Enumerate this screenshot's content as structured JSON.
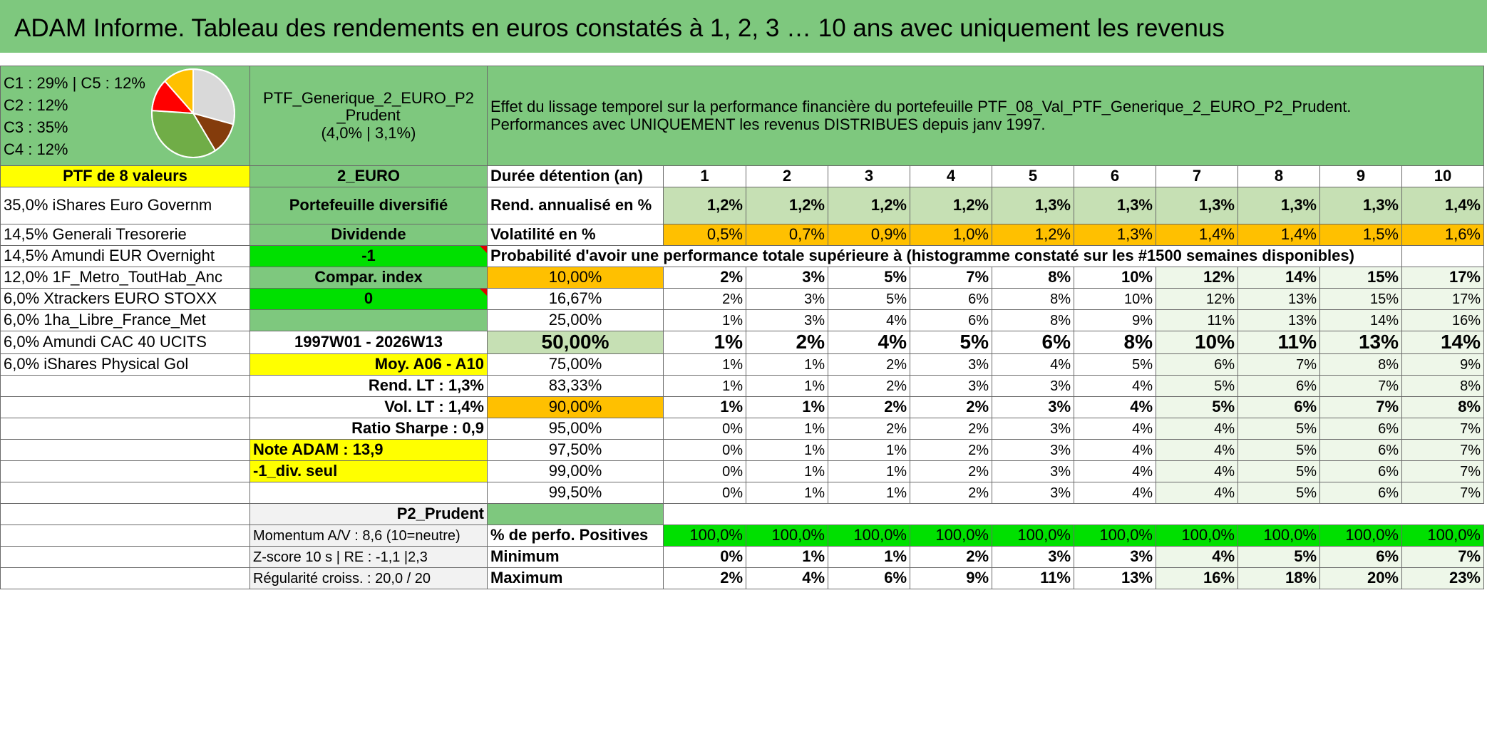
{
  "title": "ADAM Informe. Tableau des rendements en euros constatés à 1, 2, 3 … 10 ans avec uniquement les revenus",
  "composition": [
    "C1 : 29% | C5 : 12%",
    "C2 : 12%",
    "C3 : 35%",
    "C4 : 12%"
  ],
  "pie": {
    "slices": [
      {
        "label": "C1",
        "value": 29,
        "color": "#d9d9d9"
      },
      {
        "label": "C5",
        "value": 12,
        "color": "#843c0c"
      },
      {
        "label": "C3",
        "value": 35,
        "color": "#70ad47"
      },
      {
        "label": "C2",
        "value": 12,
        "color": "#ff0000"
      },
      {
        "label": "C4",
        "value": 12,
        "color": "#ffc000"
      }
    ]
  },
  "portfolio": {
    "name_line1": "PTF_Generique_2_EURO_P2",
    "name_line2": "_Prudent",
    "name_line3": "(4,0% | 3,1%)",
    "count_label": "PTF de 8 valeurs",
    "currency": "2_EURO",
    "type": "Portefeuille diversifié",
    "dividend_label": "Dividende",
    "dividend_value": "-1",
    "compar_label": "Compar. index",
    "compar_value": "0",
    "period": "1997W01 - 2026W13",
    "moy": "Moy. A06 - A10",
    "rend_lt": "Rend. LT : 1,3%",
    "vol_lt": "Vol. LT : 1,4%",
    "sharpe": "Ratio Sharpe : 0,9",
    "note": "Note ADAM : 13,9",
    "div_seul": "-1_div. seul",
    "profile": "P2_Prudent",
    "momentum": "Momentum A/V : 8,6 (10=neutre)",
    "zscore": "Z-score 10 s | RE : -1,1 |2,3",
    "regularite": "Régularité croiss. : 20,0 / 20"
  },
  "holdings": [
    "35,0% iShares Euro Governm",
    "14,5% Generali Tresorerie",
    "14,5% Amundi EUR Overnight",
    "12,0% 1F_Metro_ToutHab_Anc",
    "6,0% Xtrackers EURO STOXX",
    "6,0% 1ha_Libre_France_Met",
    "6,0% Amundi CAC 40 UCITS",
    "6,0% iShares Physical Gol"
  ],
  "description_line1": "Effet du lissage temporel sur la performance financière du portefeuille PTF_08_Val_PTF_Generique_2_EURO_P2_Prudent.",
  "description_line2": "Performances avec UNIQUEMENT les revenus DISTRIBUES depuis janv 1997.",
  "duration_label": "Durée détention (an)",
  "years": [
    "1",
    "2",
    "3",
    "4",
    "5",
    "6",
    "7",
    "8",
    "9",
    "10"
  ],
  "rend_label": "Rend. annualisé en %",
  "rend": [
    "1,2%",
    "1,2%",
    "1,2%",
    "1,2%",
    "1,3%",
    "1,3%",
    "1,3%",
    "1,3%",
    "1,3%",
    "1,4%"
  ],
  "vol_label": "Volatilité en %",
  "vol": [
    "0,5%",
    "0,7%",
    "0,9%",
    "1,0%",
    "1,2%",
    "1,3%",
    "1,4%",
    "1,4%",
    "1,5%",
    "1,6%"
  ],
  "prob_label": "Probabilité d'avoir une performance totale supérieure à (histogramme constaté sur les #1500 semaines disponibles)",
  "prob_rows": [
    {
      "pct": "10,00%",
      "values": [
        "2%",
        "3%",
        "5%",
        "7%",
        "8%",
        "10%",
        "12%",
        "14%",
        "15%",
        "17%"
      ]
    },
    {
      "pct": "16,67%",
      "values": [
        "2%",
        "3%",
        "5%",
        "6%",
        "8%",
        "10%",
        "12%",
        "13%",
        "15%",
        "17%"
      ]
    },
    {
      "pct": "25,00%",
      "values": [
        "1%",
        "3%",
        "4%",
        "6%",
        "8%",
        "9%",
        "11%",
        "13%",
        "14%",
        "16%"
      ]
    },
    {
      "pct": "50,00%",
      "values": [
        "1%",
        "2%",
        "4%",
        "5%",
        "6%",
        "8%",
        "10%",
        "11%",
        "13%",
        "14%"
      ]
    },
    {
      "pct": "75,00%",
      "values": [
        "1%",
        "1%",
        "2%",
        "3%",
        "4%",
        "5%",
        "6%",
        "7%",
        "8%",
        "9%"
      ]
    },
    {
      "pct": "83,33%",
      "values": [
        "1%",
        "1%",
        "2%",
        "3%",
        "3%",
        "4%",
        "5%",
        "6%",
        "7%",
        "8%"
      ]
    },
    {
      "pct": "90,00%",
      "values": [
        "1%",
        "1%",
        "2%",
        "2%",
        "3%",
        "4%",
        "5%",
        "6%",
        "7%",
        "8%"
      ]
    },
    {
      "pct": "95,00%",
      "values": [
        "0%",
        "1%",
        "2%",
        "2%",
        "3%",
        "4%",
        "4%",
        "5%",
        "6%",
        "7%"
      ]
    },
    {
      "pct": "97,50%",
      "values": [
        "0%",
        "1%",
        "1%",
        "2%",
        "3%",
        "4%",
        "4%",
        "5%",
        "6%",
        "7%"
      ]
    },
    {
      "pct": "99,00%",
      "values": [
        "0%",
        "1%",
        "1%",
        "2%",
        "3%",
        "4%",
        "4%",
        "5%",
        "6%",
        "7%"
      ]
    },
    {
      "pct": "99,50%",
      "values": [
        "0%",
        "1%",
        "1%",
        "2%",
        "3%",
        "4%",
        "4%",
        "5%",
        "6%",
        "7%"
      ]
    }
  ],
  "pos_label": "% de perfo. Positives",
  "pos": [
    "100,0%",
    "100,0%",
    "100,0%",
    "100,0%",
    "100,0%",
    "100,0%",
    "100,0%",
    "100,0%",
    "100,0%",
    "100,0%"
  ],
  "min_label": "Minimum",
  "min": [
    "0%",
    "1%",
    "1%",
    "2%",
    "3%",
    "3%",
    "4%",
    "5%",
    "6%",
    "7%"
  ],
  "max_label": "Maximum",
  "max": [
    "2%",
    "4%",
    "6%",
    "9%",
    "11%",
    "13%",
    "16%",
    "18%",
    "20%",
    "23%"
  ],
  "colors": {
    "header_green": "#7ec87e",
    "yellow": "#ffff00",
    "orange": "#ffc000",
    "bright_green": "#00e000",
    "light_green": "#c6e0b4",
    "red_text": "#e00000"
  }
}
